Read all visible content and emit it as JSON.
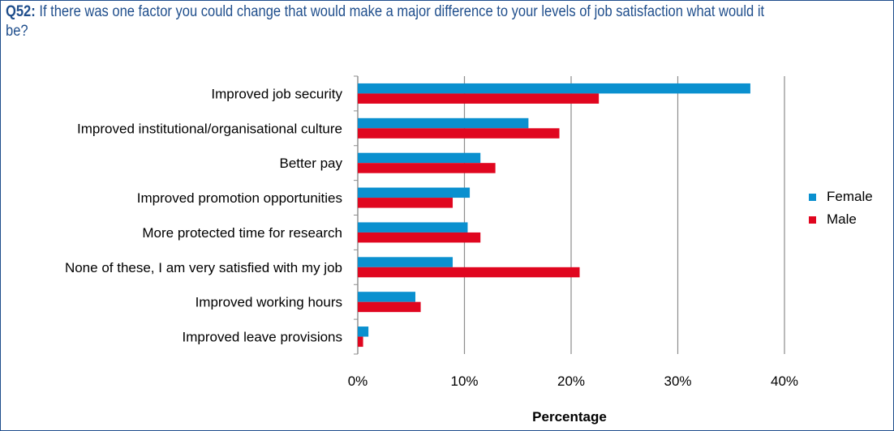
{
  "question": {
    "number": "Q52:",
    "text": "If there was one factor you could change that would make a major difference to your levels of job satisfaction what would it be?"
  },
  "colors": {
    "female": "#0a90cf",
    "male": "#e0061f",
    "grid": "#8c8c8c",
    "title": "#1f4e8c"
  },
  "chart_data": {
    "type": "bar",
    "orientation": "horizontal",
    "categories": [
      "Improved job security",
      "Improved institutional/organisational culture",
      "Better pay",
      "Improved promotion opportunities",
      "More protected time for research",
      "None of these, I am very satisfied with my job",
      "Improved working hours",
      "Improved leave provisions"
    ],
    "series": [
      {
        "name": "Female",
        "values": [
          36.8,
          16.0,
          11.5,
          10.5,
          10.3,
          8.9,
          5.4,
          1.0
        ]
      },
      {
        "name": "Male",
        "values": [
          22.6,
          18.9,
          12.9,
          8.9,
          11.5,
          20.8,
          5.9,
          0.5
        ]
      }
    ],
    "xlabel": "Percentage",
    "xlim": [
      0,
      40
    ],
    "xticks": [
      0,
      10,
      20,
      30,
      40
    ],
    "xtick_labels": [
      "0%",
      "10%",
      "20%",
      "30%",
      "40%"
    ],
    "grid": "vertical",
    "legend_position": "right"
  }
}
